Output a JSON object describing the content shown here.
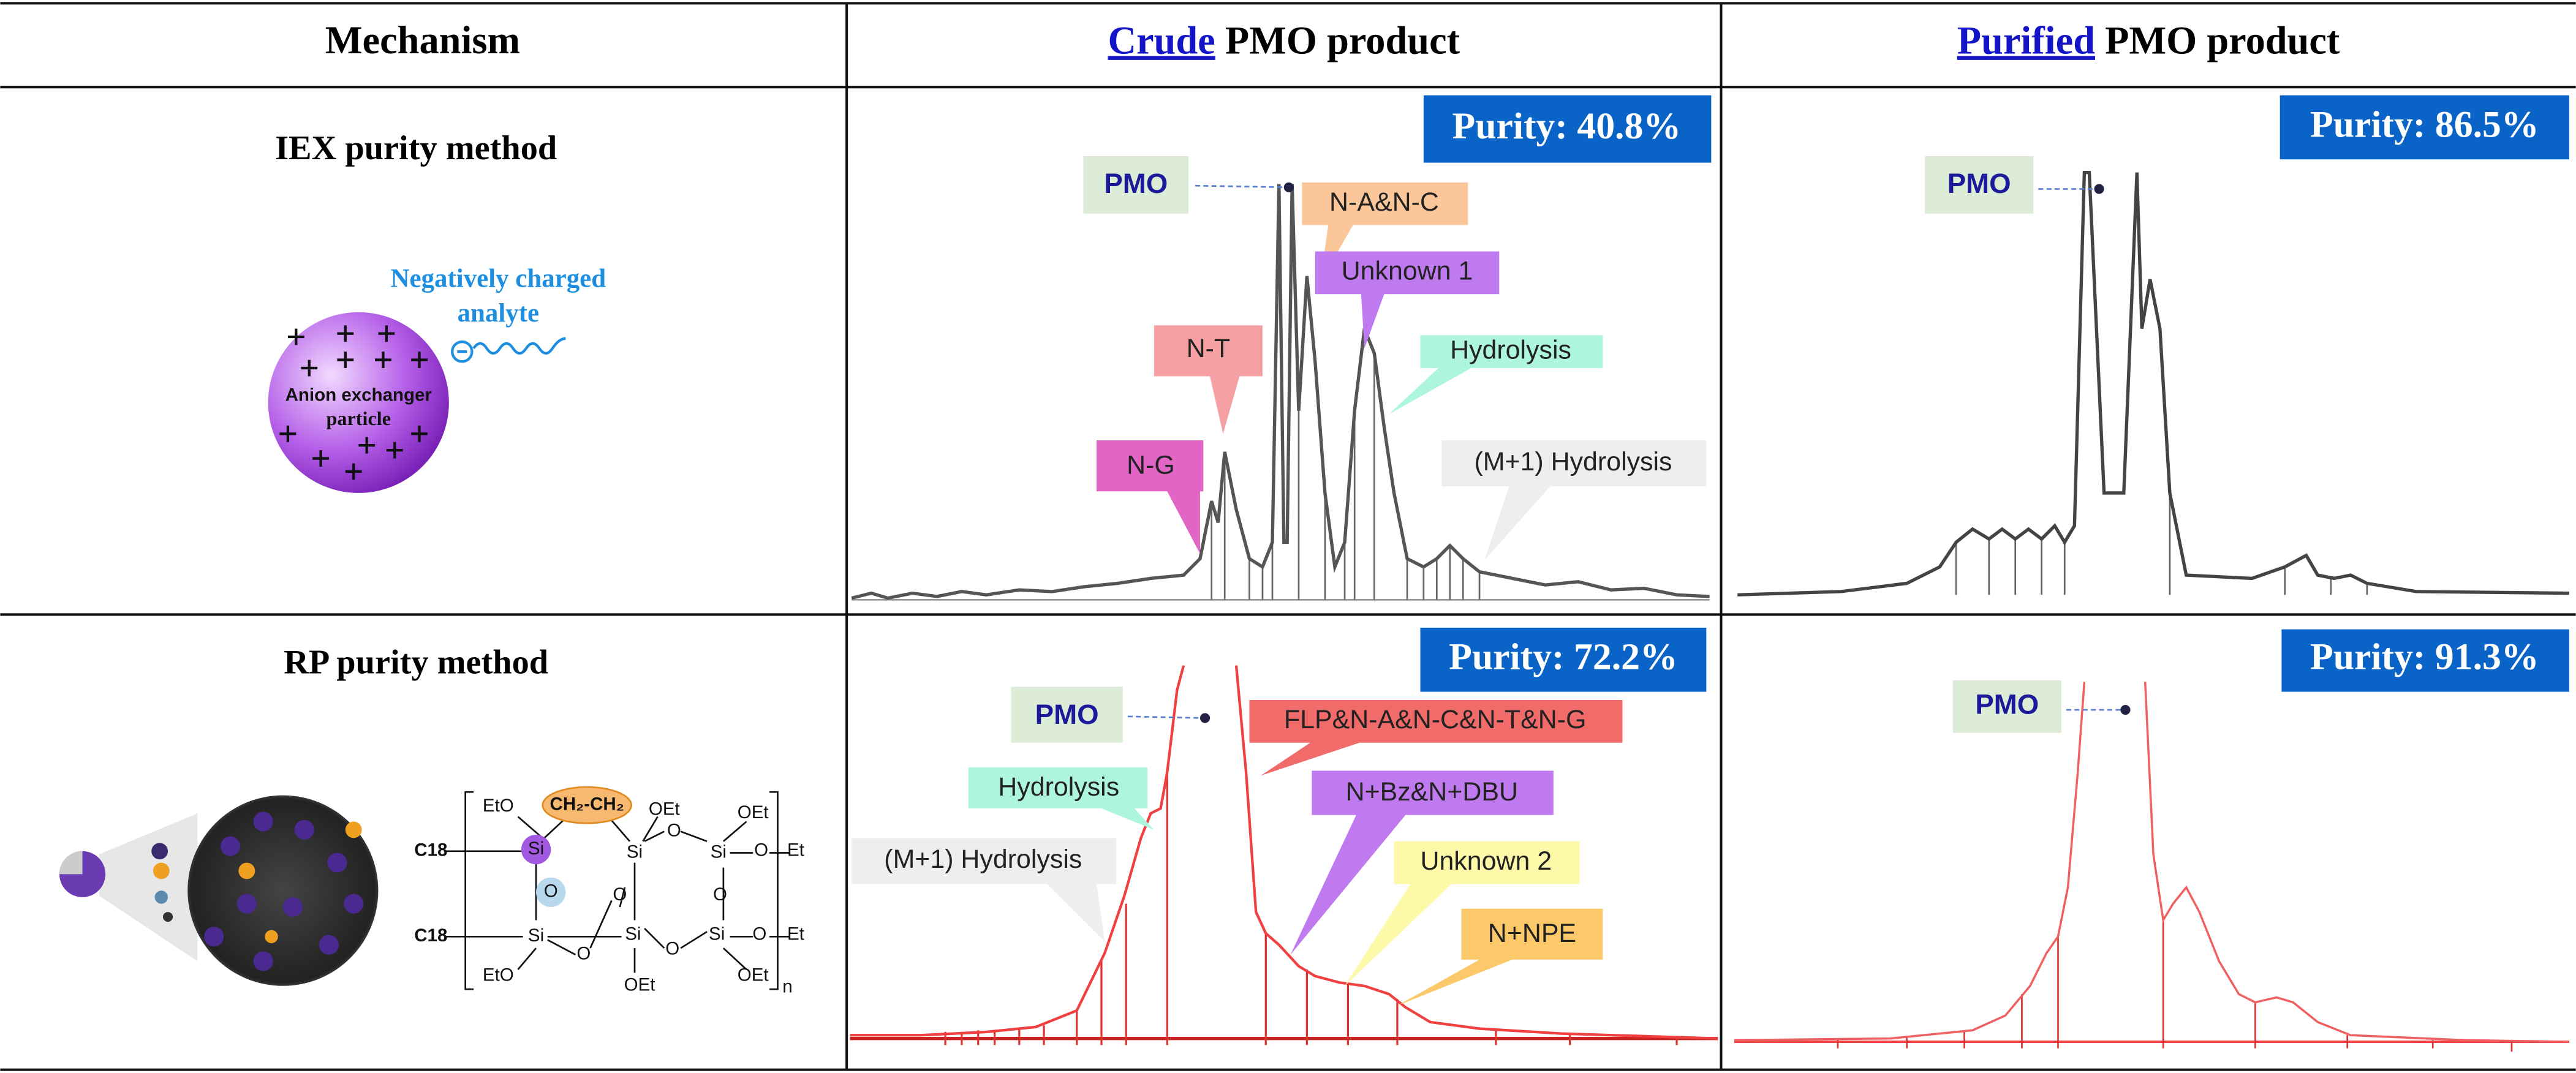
{
  "table": {
    "header": {
      "mechanism": "Mechanism",
      "crude": {
        "highlight": "Crude",
        "rest": "PMO product"
      },
      "purified": {
        "highlight": "Purified",
        "rest": "PMO product"
      }
    },
    "rows": [
      {
        "method": "IEX purity method",
        "illustration": {
          "analyte": [
            "Negatively charged",
            "analyte"
          ],
          "particle": [
            "Anion exchanger",
            "particle"
          ]
        },
        "crude": {
          "purity": "Purity: 40.8%",
          "peaks": [
            "PMO",
            "N-A&N-C",
            "Unknown 1",
            "Hydrolysis",
            "N-T",
            "N-G",
            "(M+1) Hydrolysis"
          ]
        },
        "purified": {
          "purity": "Purity: 86.5%",
          "peaks": [
            "PMO"
          ]
        }
      },
      {
        "method": "RP purity method",
        "illustration": {
          "structure": [
            "EtO",
            "CH₂-CH₂",
            "OEt",
            "OEt",
            "C18",
            "Si",
            "Si",
            "O",
            "Si",
            "O",
            "Et",
            "O",
            "O",
            "O",
            "C18",
            "Si",
            "Si",
            "O",
            "Si",
            "O",
            "Et",
            "O",
            "EtO",
            "OEt",
            "OEt",
            "n"
          ]
        },
        "crude": {
          "purity": "Purity: 72.2%",
          "peaks": [
            "PMO",
            "FLP&N-A&N-C&N-T&N-G",
            "Hydrolysis",
            "N+Bz&N+DBU",
            "(M+1) Hydrolysis",
            "Unknown 2",
            "N+NPE"
          ]
        },
        "purified": {
          "purity": "Purity: 91.3%",
          "peaks": [
            "PMO"
          ]
        }
      }
    ]
  }
}
